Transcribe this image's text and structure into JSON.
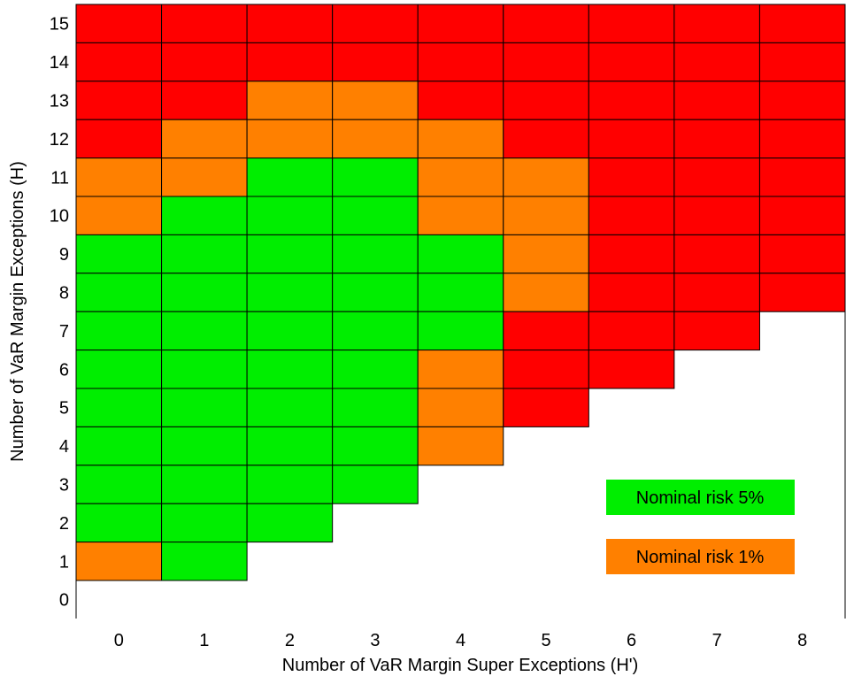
{
  "chart_data": {
    "type": "heatmap",
    "title": "",
    "xlabel": "Number of VaR Margin Super Exceptions (H')",
    "ylabel": "Number of VaR Margin Exceptions (H)",
    "x_ticks": [
      "0",
      "1",
      "2",
      "3",
      "4",
      "5",
      "6",
      "7",
      "8"
    ],
    "y_ticks": [
      "0",
      "1",
      "2",
      "3",
      "4",
      "5",
      "6",
      "7",
      "8",
      "9",
      "10",
      "11",
      "12",
      "13",
      "14",
      "15"
    ],
    "colors": {
      "G": "#00ee00",
      "O": "#ff8000",
      "R": "#ff0000"
    },
    "cell_codes": {
      "G": "green",
      "O": "orange",
      "R": "red",
      "-": "empty"
    },
    "rows_top_to_bottom": [
      {
        "h": 15,
        "cells": [
          "R",
          "R",
          "R",
          "R",
          "R",
          "R",
          "R",
          "R",
          "R"
        ]
      },
      {
        "h": 14,
        "cells": [
          "R",
          "R",
          "R",
          "R",
          "R",
          "R",
          "R",
          "R",
          "R"
        ]
      },
      {
        "h": 13,
        "cells": [
          "R",
          "R",
          "O",
          "O",
          "R",
          "R",
          "R",
          "R",
          "R"
        ]
      },
      {
        "h": 12,
        "cells": [
          "R",
          "O",
          "O",
          "O",
          "O",
          "R",
          "R",
          "R",
          "R"
        ]
      },
      {
        "h": 11,
        "cells": [
          "O",
          "O",
          "G",
          "G",
          "O",
          "O",
          "R",
          "R",
          "R"
        ]
      },
      {
        "h": 10,
        "cells": [
          "O",
          "G",
          "G",
          "G",
          "O",
          "O",
          "R",
          "R",
          "R"
        ]
      },
      {
        "h": 9,
        "cells": [
          "G",
          "G",
          "G",
          "G",
          "G",
          "O",
          "R",
          "R",
          "R"
        ]
      },
      {
        "h": 8,
        "cells": [
          "G",
          "G",
          "G",
          "G",
          "G",
          "O",
          "R",
          "R",
          "R"
        ]
      },
      {
        "h": 7,
        "cells": [
          "G",
          "G",
          "G",
          "G",
          "G",
          "R",
          "R",
          "R",
          "-"
        ]
      },
      {
        "h": 6,
        "cells": [
          "G",
          "G",
          "G",
          "G",
          "O",
          "R",
          "R",
          "-",
          "-"
        ]
      },
      {
        "h": 5,
        "cells": [
          "G",
          "G",
          "G",
          "G",
          "O",
          "R",
          "-",
          "-",
          "-"
        ]
      },
      {
        "h": 4,
        "cells": [
          "G",
          "G",
          "G",
          "G",
          "O",
          "-",
          "-",
          "-",
          "-"
        ]
      },
      {
        "h": 3,
        "cells": [
          "G",
          "G",
          "G",
          "G",
          "-",
          "-",
          "-",
          "-",
          "-"
        ]
      },
      {
        "h": 2,
        "cells": [
          "G",
          "G",
          "G",
          "-",
          "-",
          "-",
          "-",
          "-",
          "-"
        ]
      },
      {
        "h": 1,
        "cells": [
          "O",
          "G",
          "-",
          "-",
          "-",
          "-",
          "-",
          "-",
          "-"
        ]
      },
      {
        "h": 0,
        "cells": [
          "-",
          "-",
          "-",
          "-",
          "-",
          "-",
          "-",
          "-",
          "-"
        ]
      }
    ],
    "legend": {
      "placement": "bottom-right",
      "entries": [
        {
          "label": "Nominal risk 5%",
          "color": "#00ee00"
        },
        {
          "label": "Nominal risk 1%",
          "color": "#ff8000"
        }
      ]
    },
    "grid": false
  }
}
